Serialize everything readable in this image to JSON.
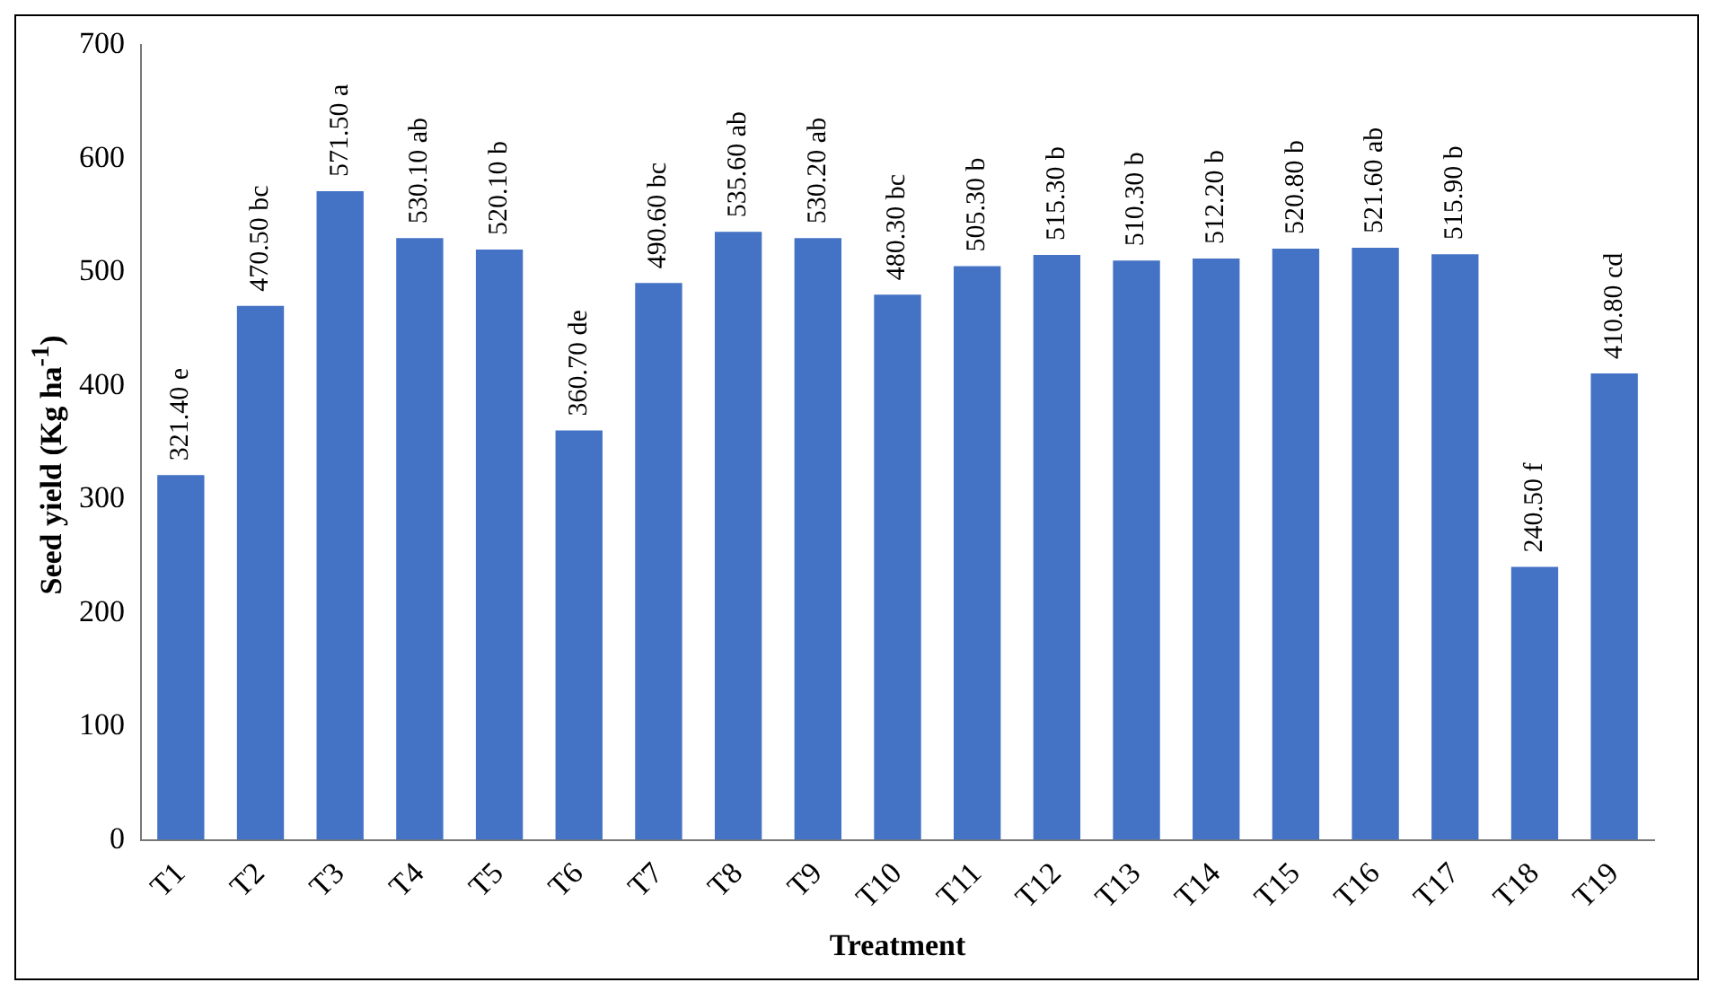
{
  "chart_data": {
    "type": "bar",
    "xlabel": "Treatment",
    "ylabel": "Seed yield  (Kg ha$^{-1}$)",
    "categories": [
      "T1",
      "T2",
      "T3",
      "T4",
      "T5",
      "T6",
      "T7",
      "T8",
      "T9",
      "T10",
      "T11",
      "T12",
      "T13",
      "T14",
      "T15",
      "T16",
      "T17",
      "T18",
      "T19"
    ],
    "values": [
      321.4,
      470.5,
      571.5,
      530.1,
      520.1,
      360.7,
      490.6,
      535.6,
      530.2,
      480.3,
      505.3,
      515.3,
      510.3,
      512.2,
      520.8,
      521.6,
      515.9,
      240.5,
      410.8
    ],
    "value_labels": [
      "321.40 e",
      "470.50 bc",
      "571.50 a",
      "530.10 ab",
      "520.10 b",
      "360.70 de",
      "490.60 bc",
      "535.60 ab",
      "530.20 ab",
      "480.30 bc",
      "505.30 b",
      "515.30 b",
      "510.30 b",
      "512.20 b",
      "520.80 b",
      "521.60 ab",
      "515.90 b",
      "240.50 f",
      "410.80 cd"
    ],
    "color": "#4472c4",
    "ylim": [
      0,
      700
    ],
    "yticks": [
      0,
      100,
      200,
      300,
      400,
      500,
      600,
      700
    ],
    "grid": false,
    "legend": false
  }
}
